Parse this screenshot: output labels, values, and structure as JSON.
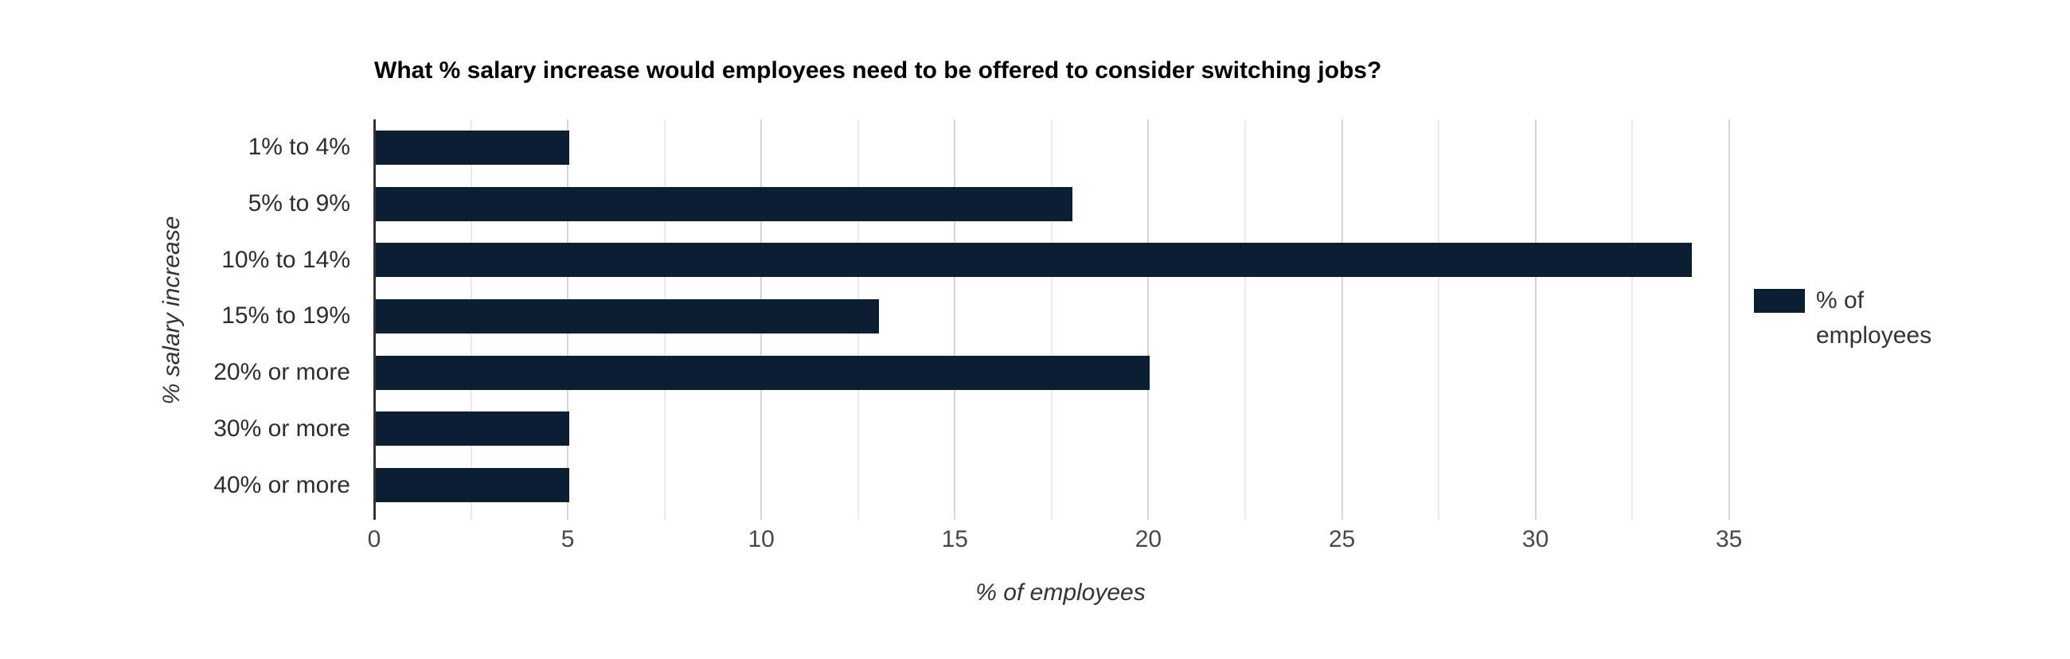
{
  "chart_data": {
    "type": "bar",
    "orientation": "horizontal",
    "title": "What % salary increase would employees need to be offered to consider switching jobs?",
    "categories": [
      "1% to 4%",
      "5% to 9%",
      "10% to 14%",
      "15% to 19%",
      "20% or more",
      "30% or more",
      "40% or more"
    ],
    "series": [
      {
        "name": "% of employees",
        "values": [
          5,
          18,
          34,
          13,
          20,
          5,
          5
        ]
      }
    ],
    "xlabel": "% of employees",
    "ylabel": "% salary increase",
    "xlim": [
      0,
      35
    ],
    "x_ticks": [
      0,
      5,
      10,
      15,
      20,
      25,
      30,
      35
    ],
    "x_major_step": 5,
    "x_minor_step": 2.5,
    "grid": true,
    "legend_position": "right",
    "colors": {
      "bar": "#0b1e32",
      "axis_line": "#333333",
      "major_gridline": "#d6d6d6",
      "minor_gridline": "#ebebeb",
      "title_text": "#000000",
      "tick_text": "#484848",
      "category_text": "#2d2d2d"
    }
  },
  "legend": {
    "label": "% of employees"
  }
}
